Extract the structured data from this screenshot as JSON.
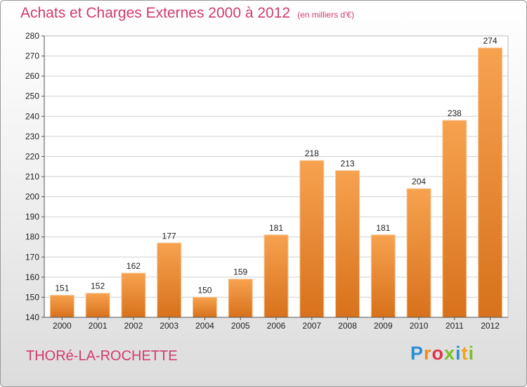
{
  "title": "Achats et Charges Externes 2000 à 2012",
  "unit_note": "(en milliers d'€)",
  "town": "THORé-LA-ROCHETTE",
  "logo": {
    "letters": [
      {
        "ch": "P",
        "color": "#2a8fd6"
      },
      {
        "ch": "r",
        "color": "#f08a1c"
      },
      {
        "ch": "o",
        "color": "#e2324a"
      },
      {
        "ch": "x",
        "color": "#7bbf2a"
      },
      {
        "ch": "i",
        "color": "#2a8fd6"
      },
      {
        "ch": "t",
        "color": "#f0a21c"
      },
      {
        "ch": "i",
        "color": "#7bbf2a"
      }
    ]
  },
  "colors": {
    "bar_top": "#f7a24f",
    "bar_bottom": "#d8711b",
    "title": "#d23b6c",
    "grid": "#d0d0d0"
  },
  "chart_data": {
    "type": "bar",
    "categories": [
      "2000",
      "2001",
      "2002",
      "2003",
      "2004",
      "2005",
      "2006",
      "2007",
      "2008",
      "2009",
      "2010",
      "2011",
      "2012"
    ],
    "values": [
      151,
      152,
      162,
      177,
      150,
      159,
      181,
      218,
      213,
      181,
      204,
      238,
      274
    ],
    "ylim": [
      140,
      280
    ],
    "yticks": [
      140,
      150,
      160,
      170,
      180,
      190,
      200,
      210,
      220,
      230,
      240,
      250,
      260,
      270,
      280
    ],
    "grid": true,
    "xlabel": "",
    "ylabel": ""
  }
}
